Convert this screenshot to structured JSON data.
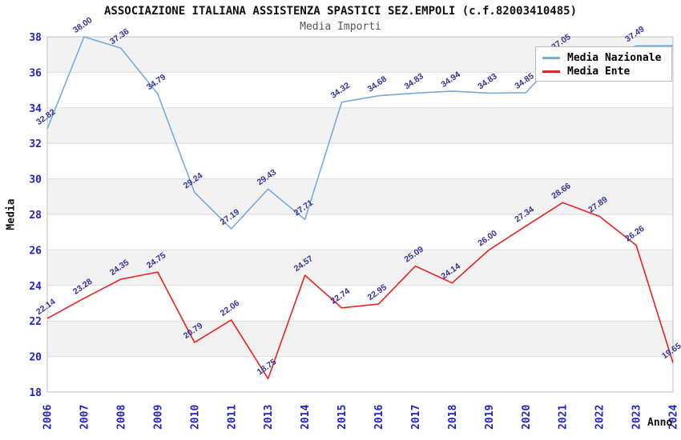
{
  "title": "ASSOCIAZIONE ITALIANA ASSISTENZA SPASTICI SEZ.EMPOLI (c.f.82003410485)",
  "subtitle": "Media Importi",
  "colors": {
    "media_nazionale": "#78aadc",
    "media_ente": "#e82222",
    "tick_label": "#2222cc",
    "data_label": "#333399",
    "band": "#f2f2f2",
    "grid": "#dcdcdc",
    "plot_border": "#bfbfbf"
  },
  "legend": {
    "items": [
      {
        "label": "Media Nazionale",
        "color": "#78aadc"
      },
      {
        "label": "Media Ente",
        "color": "#e82222"
      }
    ]
  },
  "chart_data": {
    "type": "line",
    "x": [
      "2006",
      "2007",
      "2008",
      "2009",
      "2010",
      "2011",
      "2013",
      "2014",
      "2015",
      "2016",
      "2017",
      "2018",
      "2019",
      "2020",
      "2021",
      "2022",
      "2023",
      "2024"
    ],
    "xlabel": "Anno",
    "ylabel": "Media",
    "ylim": [
      18,
      38
    ],
    "ytick_step": 2,
    "grid": true,
    "banded_background": true,
    "legend_position": "top-right",
    "series": [
      {
        "name": "Media Nazionale",
        "color": "#78aadc",
        "values": [
          32.82,
          38.0,
          37.36,
          34.79,
          29.24,
          27.19,
          29.43,
          27.71,
          34.32,
          34.68,
          34.83,
          34.94,
          34.83,
          34.85,
          37.05,
          36.7,
          37.49,
          37.5
        ],
        "labels": [
          "32.82",
          "38.00",
          "37.36",
          "34.79",
          "29.24",
          "27.19",
          "29.43",
          "27.71",
          "34.32",
          "34.68",
          "34.83",
          "34.94",
          "34.83",
          "34.85",
          "37.05",
          "",
          "37.49",
          ""
        ]
      },
      {
        "name": "Media Ente",
        "color": "#e82222",
        "values": [
          22.14,
          23.28,
          24.35,
          24.75,
          20.79,
          22.06,
          18.75,
          24.57,
          22.74,
          22.95,
          25.09,
          24.14,
          26.0,
          27.34,
          28.66,
          27.89,
          26.26,
          19.65
        ],
        "labels": [
          "22.14",
          "23.28",
          "24.35",
          "24.75",
          "20.79",
          "22.06",
          "18.75",
          "24.57",
          "22.74",
          "22.95",
          "25.09",
          "24.14",
          "26.00",
          "27.34",
          "28.66",
          "27.89",
          "26.26",
          "19.65"
        ]
      }
    ]
  }
}
